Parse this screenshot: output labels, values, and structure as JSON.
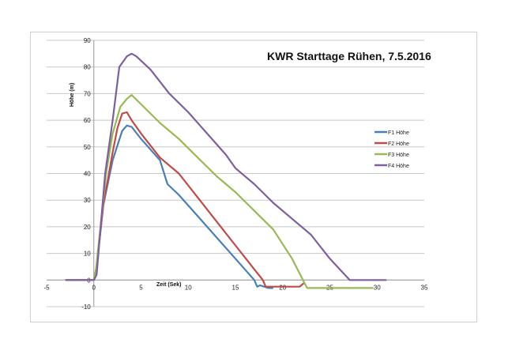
{
  "chart_data": {
    "type": "line",
    "title": "KWR Starttage Rühen, 7.5.2016",
    "xlabel": "Zeit (Sek)",
    "ylabel": "Höhe (m)",
    "xlim": [
      -5,
      35
    ],
    "ylim": [
      -10,
      90
    ],
    "xticks": [
      -5,
      0,
      5,
      10,
      15,
      20,
      25,
      30,
      35
    ],
    "yticks": [
      -10,
      0,
      10,
      20,
      30,
      40,
      50,
      60,
      70,
      80,
      90
    ],
    "grid": "horizontal",
    "legend": "right",
    "series": [
      {
        "name": "F1 Höhe",
        "color": "#4a7ebb",
        "x": [
          -3,
          0,
          0.3,
          1,
          2,
          3,
          3.5,
          4,
          5,
          7,
          7.8,
          9,
          11,
          13,
          15,
          17,
          17.3,
          17.6,
          18.5,
          19
        ],
        "y": [
          0,
          0,
          5,
          28,
          45,
          56,
          58,
          57.5,
          53,
          45,
          36,
          32,
          24,
          16,
          8,
          0,
          -2.5,
          -2,
          -3,
          -3
        ]
      },
      {
        "name": "F2 Höhe",
        "color": "#be4b48",
        "x": [
          -3,
          0,
          0.3,
          1,
          2,
          2.5,
          3,
          3.5,
          4,
          5,
          7,
          9,
          11,
          13,
          15,
          17,
          17.9,
          18.2,
          20,
          21.8,
          22.3
        ],
        "y": [
          0,
          0,
          5,
          28,
          48,
          57,
          62.5,
          63,
          60,
          55,
          46,
          40,
          31,
          22,
          13,
          4,
          0,
          -2.5,
          -2.5,
          -2.5,
          -1
        ]
      },
      {
        "name": "F3 Höhe",
        "color": "#98b954",
        "x": [
          -3,
          0,
          0.2,
          1.3,
          2,
          2.8,
          3.5,
          4,
          5,
          7,
          9,
          11,
          13,
          15,
          17,
          19,
          21,
          22.3,
          22.6,
          25,
          27,
          29.6
        ],
        "y": [
          0,
          0,
          3,
          40,
          55,
          65,
          68,
          69.5,
          66,
          59,
          53,
          46,
          39,
          33,
          26,
          19,
          8,
          -1,
          -3,
          -3,
          -3,
          -3
        ]
      },
      {
        "name": "F4 Höhe",
        "color": "#7d5fa0",
        "x": [
          -3,
          0,
          0.3,
          1.2,
          2,
          2.7,
          3.5,
          4,
          4.5,
          6,
          8,
          10,
          12,
          14,
          15,
          17,
          19,
          21,
          23,
          25,
          27.1,
          29,
          31
        ],
        "y": [
          0,
          0,
          2,
          40,
          60,
          80,
          84,
          85,
          84,
          79,
          70,
          63,
          55,
          47,
          42,
          36,
          29,
          23,
          17,
          8,
          0,
          0,
          0
        ]
      }
    ]
  }
}
